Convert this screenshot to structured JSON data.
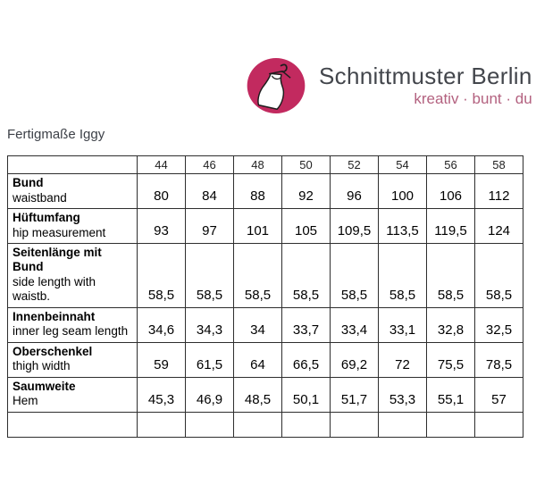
{
  "page": {
    "title": "Fertigmaße Iggy"
  },
  "logo": {
    "brand": "Schnittmuster Berlin",
    "tagline": "kreativ · bunt · du",
    "icon": "dress-on-hanger-icon",
    "circle_color": "#c22a5f",
    "tagline_color": "#b3617f",
    "brand_text_color": "#43464c"
  },
  "table": {
    "sizes": [
      "44",
      "46",
      "48",
      "50",
      "52",
      "54",
      "56",
      "58"
    ],
    "rows": [
      {
        "label_de": "Bund",
        "label_en": "waistband",
        "values": [
          "80",
          "84",
          "88",
          "92",
          "96",
          "100",
          "106",
          "112"
        ]
      },
      {
        "label_de": "Hüftumfang",
        "label_en": "hip measurement",
        "values": [
          "93",
          "97",
          "101",
          "105",
          "109,5",
          "113,5",
          "119,5",
          "124"
        ]
      },
      {
        "label_de": "Seitenlänge mit Bund",
        "label_en": "side length with waistb.",
        "values": [
          "58,5",
          "58,5",
          "58,5",
          "58,5",
          "58,5",
          "58,5",
          "58,5",
          "58,5"
        ]
      },
      {
        "label_de": "Innenbeinnaht",
        "label_en": "inner leg seam length",
        "values": [
          "34,6",
          "34,3",
          "34",
          "33,7",
          "33,4",
          "33,1",
          "32,8",
          "32,5"
        ]
      },
      {
        "label_de": "Oberschenkel",
        "label_en": "thigh width",
        "values": [
          "59",
          "61,5",
          "64",
          "66,5",
          "69,2",
          "72",
          "75,5",
          "78,5"
        ]
      },
      {
        "label_de": "Saumweite",
        "label_en": "Hem",
        "values": [
          "45,3",
          "46,9",
          "48,5",
          "50,1",
          "51,7",
          "53,3",
          "55,1",
          "57"
        ]
      }
    ],
    "has_trailing_empty_row": true
  }
}
